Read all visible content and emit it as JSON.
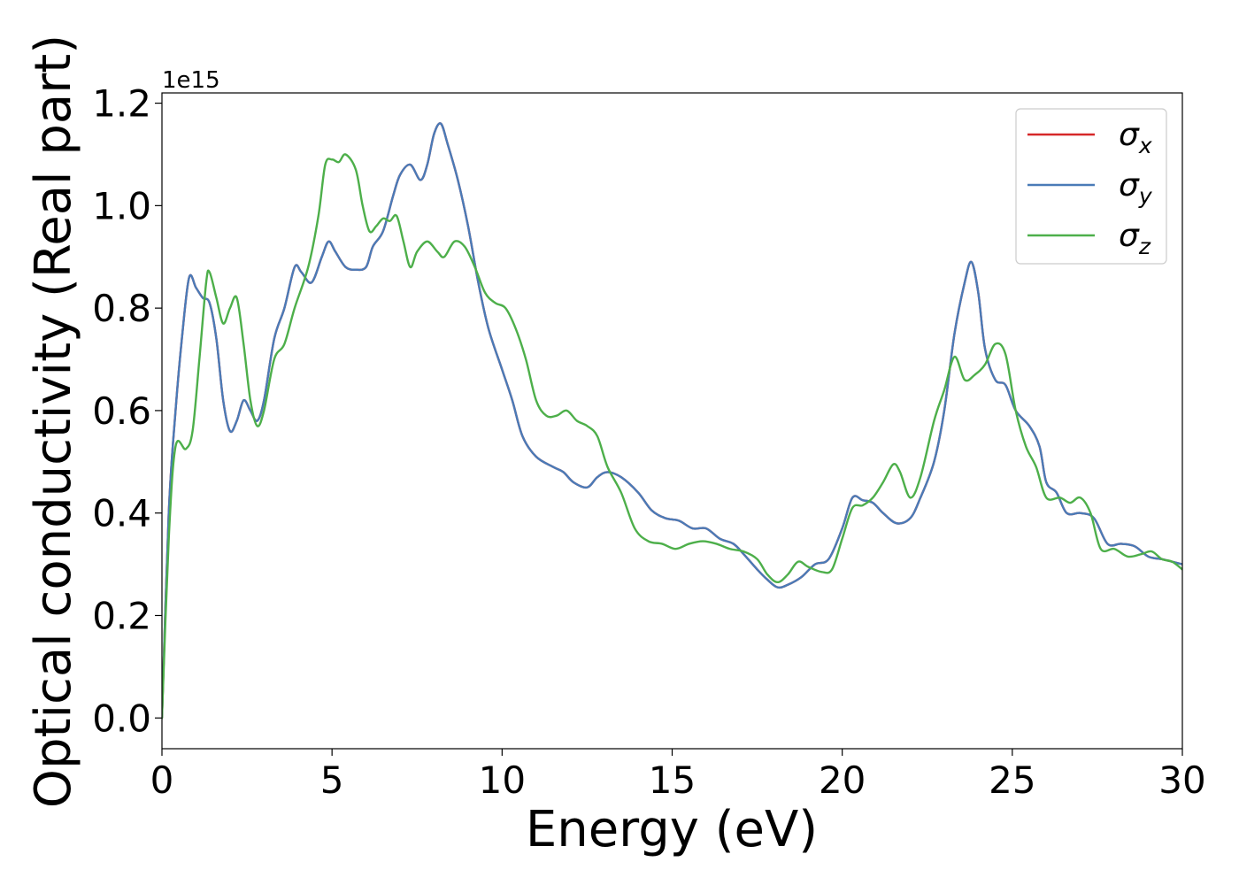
{
  "chart_data": {
    "type": "line",
    "xlabel": "Energy (eV)",
    "ylabel": "Optical conductivity (Real part)",
    "y_multiplier_label": "1e15",
    "xlim": [
      0,
      30
    ],
    "ylim": [
      -0.06,
      1.22
    ],
    "x_ticks": [
      0,
      5,
      10,
      15,
      20,
      25,
      30
    ],
    "x_tick_labels": [
      "0",
      "5",
      "10",
      "15",
      "20",
      "25",
      "30"
    ],
    "y_ticks": [
      0.0,
      0.2,
      0.4,
      0.6,
      0.8,
      1.0,
      1.2
    ],
    "y_tick_labels": [
      "0.0",
      "0.2",
      "0.4",
      "0.6",
      "0.8",
      "1.0",
      "1.2"
    ],
    "grid": false,
    "legend_position": "upper-right",
    "series": [
      {
        "name": "σx",
        "legend_base": "σ",
        "legend_sub": "x",
        "color": "#d62728",
        "points": [
          [
            0,
            0.0
          ],
          [
            0.2,
            0.4
          ],
          [
            0.4,
            0.6
          ],
          [
            0.6,
            0.75
          ],
          [
            0.8,
            0.86
          ],
          [
            1.0,
            0.84
          ],
          [
            1.2,
            0.82
          ],
          [
            1.4,
            0.81
          ],
          [
            1.6,
            0.74
          ],
          [
            1.8,
            0.62
          ],
          [
            2.0,
            0.56
          ],
          [
            2.2,
            0.58
          ],
          [
            2.4,
            0.62
          ],
          [
            2.6,
            0.6
          ],
          [
            2.8,
            0.58
          ],
          [
            3.0,
            0.62
          ],
          [
            3.3,
            0.74
          ],
          [
            3.6,
            0.8
          ],
          [
            3.9,
            0.88
          ],
          [
            4.1,
            0.87
          ],
          [
            4.4,
            0.85
          ],
          [
            4.7,
            0.9
          ],
          [
            4.9,
            0.93
          ],
          [
            5.1,
            0.91
          ],
          [
            5.4,
            0.88
          ],
          [
            5.7,
            0.875
          ],
          [
            6.0,
            0.88
          ],
          [
            6.2,
            0.92
          ],
          [
            6.5,
            0.95
          ],
          [
            6.8,
            1.02
          ],
          [
            7.0,
            1.06
          ],
          [
            7.3,
            1.08
          ],
          [
            7.6,
            1.05
          ],
          [
            7.8,
            1.08
          ],
          [
            8.0,
            1.14
          ],
          [
            8.2,
            1.16
          ],
          [
            8.4,
            1.12
          ],
          [
            8.7,
            1.05
          ],
          [
            9.0,
            0.96
          ],
          [
            9.3,
            0.85
          ],
          [
            9.6,
            0.76
          ],
          [
            10.0,
            0.68
          ],
          [
            10.3,
            0.62
          ],
          [
            10.6,
            0.55
          ],
          [
            11.0,
            0.51
          ],
          [
            11.5,
            0.49
          ],
          [
            11.8,
            0.48
          ],
          [
            12.1,
            0.46
          ],
          [
            12.5,
            0.45
          ],
          [
            12.8,
            0.47
          ],
          [
            13.1,
            0.48
          ],
          [
            13.5,
            0.47
          ],
          [
            14.0,
            0.44
          ],
          [
            14.4,
            0.405
          ],
          [
            14.8,
            0.39
          ],
          [
            15.2,
            0.385
          ],
          [
            15.6,
            0.37
          ],
          [
            16.0,
            0.37
          ],
          [
            16.4,
            0.35
          ],
          [
            16.8,
            0.34
          ],
          [
            17.1,
            0.32
          ],
          [
            17.5,
            0.29
          ],
          [
            17.8,
            0.27
          ],
          [
            18.1,
            0.255
          ],
          [
            18.4,
            0.26
          ],
          [
            18.8,
            0.275
          ],
          [
            19.2,
            0.3
          ],
          [
            19.6,
            0.31
          ],
          [
            20.0,
            0.37
          ],
          [
            20.3,
            0.43
          ],
          [
            20.6,
            0.425
          ],
          [
            20.9,
            0.42
          ],
          [
            21.2,
            0.4
          ],
          [
            21.6,
            0.38
          ],
          [
            22.0,
            0.39
          ],
          [
            22.3,
            0.43
          ],
          [
            22.7,
            0.5
          ],
          [
            23.0,
            0.6
          ],
          [
            23.3,
            0.75
          ],
          [
            23.6,
            0.85
          ],
          [
            23.8,
            0.89
          ],
          [
            24.0,
            0.83
          ],
          [
            24.2,
            0.72
          ],
          [
            24.5,
            0.66
          ],
          [
            24.8,
            0.65
          ],
          [
            25.1,
            0.6
          ],
          [
            25.5,
            0.57
          ],
          [
            25.8,
            0.53
          ],
          [
            26.0,
            0.46
          ],
          [
            26.3,
            0.44
          ],
          [
            26.6,
            0.4
          ],
          [
            27.0,
            0.4
          ],
          [
            27.4,
            0.39
          ],
          [
            27.8,
            0.34
          ],
          [
            28.2,
            0.34
          ],
          [
            28.6,
            0.335
          ],
          [
            29.0,
            0.315
          ],
          [
            29.4,
            0.31
          ],
          [
            29.7,
            0.305
          ],
          [
            30.0,
            0.3
          ]
        ]
      },
      {
        "name": "σy",
        "legend_base": "σ",
        "legend_sub": "y",
        "color": "#4a7bb7",
        "points": [
          [
            0,
            0.0
          ],
          [
            0.2,
            0.4
          ],
          [
            0.4,
            0.6
          ],
          [
            0.6,
            0.75
          ],
          [
            0.8,
            0.86
          ],
          [
            1.0,
            0.84
          ],
          [
            1.2,
            0.82
          ],
          [
            1.4,
            0.81
          ],
          [
            1.6,
            0.74
          ],
          [
            1.8,
            0.62
          ],
          [
            2.0,
            0.56
          ],
          [
            2.2,
            0.58
          ],
          [
            2.4,
            0.62
          ],
          [
            2.6,
            0.6
          ],
          [
            2.8,
            0.58
          ],
          [
            3.0,
            0.62
          ],
          [
            3.3,
            0.74
          ],
          [
            3.6,
            0.8
          ],
          [
            3.9,
            0.88
          ],
          [
            4.1,
            0.87
          ],
          [
            4.4,
            0.85
          ],
          [
            4.7,
            0.9
          ],
          [
            4.9,
            0.93
          ],
          [
            5.1,
            0.91
          ],
          [
            5.4,
            0.88
          ],
          [
            5.7,
            0.875
          ],
          [
            6.0,
            0.88
          ],
          [
            6.2,
            0.92
          ],
          [
            6.5,
            0.95
          ],
          [
            6.8,
            1.02
          ],
          [
            7.0,
            1.06
          ],
          [
            7.3,
            1.08
          ],
          [
            7.6,
            1.05
          ],
          [
            7.8,
            1.08
          ],
          [
            8.0,
            1.14
          ],
          [
            8.2,
            1.16
          ],
          [
            8.4,
            1.12
          ],
          [
            8.7,
            1.05
          ],
          [
            9.0,
            0.96
          ],
          [
            9.3,
            0.85
          ],
          [
            9.6,
            0.76
          ],
          [
            10.0,
            0.68
          ],
          [
            10.3,
            0.62
          ],
          [
            10.6,
            0.55
          ],
          [
            11.0,
            0.51
          ],
          [
            11.5,
            0.49
          ],
          [
            11.8,
            0.48
          ],
          [
            12.1,
            0.46
          ],
          [
            12.5,
            0.45
          ],
          [
            12.8,
            0.47
          ],
          [
            13.1,
            0.48
          ],
          [
            13.5,
            0.47
          ],
          [
            14.0,
            0.44
          ],
          [
            14.4,
            0.405
          ],
          [
            14.8,
            0.39
          ],
          [
            15.2,
            0.385
          ],
          [
            15.6,
            0.37
          ],
          [
            16.0,
            0.37
          ],
          [
            16.4,
            0.35
          ],
          [
            16.8,
            0.34
          ],
          [
            17.1,
            0.32
          ],
          [
            17.5,
            0.29
          ],
          [
            17.8,
            0.27
          ],
          [
            18.1,
            0.255
          ],
          [
            18.4,
            0.26
          ],
          [
            18.8,
            0.275
          ],
          [
            19.2,
            0.3
          ],
          [
            19.6,
            0.31
          ],
          [
            20.0,
            0.37
          ],
          [
            20.3,
            0.43
          ],
          [
            20.6,
            0.425
          ],
          [
            20.9,
            0.42
          ],
          [
            21.2,
            0.4
          ],
          [
            21.6,
            0.38
          ],
          [
            22.0,
            0.39
          ],
          [
            22.3,
            0.43
          ],
          [
            22.7,
            0.5
          ],
          [
            23.0,
            0.6
          ],
          [
            23.3,
            0.75
          ],
          [
            23.6,
            0.85
          ],
          [
            23.8,
            0.89
          ],
          [
            24.0,
            0.83
          ],
          [
            24.2,
            0.72
          ],
          [
            24.5,
            0.66
          ],
          [
            24.8,
            0.65
          ],
          [
            25.1,
            0.6
          ],
          [
            25.5,
            0.57
          ],
          [
            25.8,
            0.53
          ],
          [
            26.0,
            0.46
          ],
          [
            26.3,
            0.44
          ],
          [
            26.6,
            0.4
          ],
          [
            27.0,
            0.4
          ],
          [
            27.4,
            0.39
          ],
          [
            27.8,
            0.34
          ],
          [
            28.2,
            0.34
          ],
          [
            28.6,
            0.335
          ],
          [
            29.0,
            0.315
          ],
          [
            29.4,
            0.31
          ],
          [
            29.7,
            0.305
          ],
          [
            30.0,
            0.3
          ]
        ]
      },
      {
        "name": "σz",
        "legend_base": "σ",
        "legend_sub": "z",
        "color": "#4daf4a",
        "points": [
          [
            0,
            0.0
          ],
          [
            0.2,
            0.35
          ],
          [
            0.4,
            0.53
          ],
          [
            0.7,
            0.525
          ],
          [
            0.9,
            0.56
          ],
          [
            1.1,
            0.7
          ],
          [
            1.3,
            0.85
          ],
          [
            1.4,
            0.87
          ],
          [
            1.6,
            0.82
          ],
          [
            1.8,
            0.77
          ],
          [
            2.0,
            0.8
          ],
          [
            2.2,
            0.82
          ],
          [
            2.4,
            0.73
          ],
          [
            2.6,
            0.62
          ],
          [
            2.8,
            0.57
          ],
          [
            3.0,
            0.6
          ],
          [
            3.3,
            0.7
          ],
          [
            3.6,
            0.73
          ],
          [
            3.9,
            0.8
          ],
          [
            4.3,
            0.88
          ],
          [
            4.6,
            0.98
          ],
          [
            4.8,
            1.08
          ],
          [
            5.0,
            1.09
          ],
          [
            5.2,
            1.085
          ],
          [
            5.4,
            1.1
          ],
          [
            5.7,
            1.07
          ],
          [
            5.9,
            1.0
          ],
          [
            6.1,
            0.95
          ],
          [
            6.3,
            0.96
          ],
          [
            6.5,
            0.975
          ],
          [
            6.7,
            0.97
          ],
          [
            6.9,
            0.98
          ],
          [
            7.1,
            0.93
          ],
          [
            7.3,
            0.88
          ],
          [
            7.5,
            0.91
          ],
          [
            7.8,
            0.93
          ],
          [
            8.1,
            0.91
          ],
          [
            8.3,
            0.9
          ],
          [
            8.6,
            0.93
          ],
          [
            8.9,
            0.92
          ],
          [
            9.2,
            0.88
          ],
          [
            9.5,
            0.83
          ],
          [
            9.8,
            0.81
          ],
          [
            10.1,
            0.8
          ],
          [
            10.4,
            0.76
          ],
          [
            10.7,
            0.7
          ],
          [
            11.0,
            0.62
          ],
          [
            11.3,
            0.59
          ],
          [
            11.6,
            0.59
          ],
          [
            11.9,
            0.6
          ],
          [
            12.2,
            0.58
          ],
          [
            12.5,
            0.57
          ],
          [
            12.8,
            0.55
          ],
          [
            13.1,
            0.49
          ],
          [
            13.5,
            0.44
          ],
          [
            13.9,
            0.37
          ],
          [
            14.3,
            0.345
          ],
          [
            14.7,
            0.34
          ],
          [
            15.1,
            0.33
          ],
          [
            15.5,
            0.34
          ],
          [
            15.9,
            0.345
          ],
          [
            16.3,
            0.34
          ],
          [
            16.7,
            0.33
          ],
          [
            17.1,
            0.325
          ],
          [
            17.5,
            0.31
          ],
          [
            17.8,
            0.28
          ],
          [
            18.1,
            0.265
          ],
          [
            18.4,
            0.28
          ],
          [
            18.7,
            0.305
          ],
          [
            19.0,
            0.295
          ],
          [
            19.4,
            0.285
          ],
          [
            19.7,
            0.29
          ],
          [
            20.0,
            0.35
          ],
          [
            20.3,
            0.41
          ],
          [
            20.6,
            0.415
          ],
          [
            20.9,
            0.43
          ],
          [
            21.2,
            0.46
          ],
          [
            21.5,
            0.495
          ],
          [
            21.7,
            0.48
          ],
          [
            22.0,
            0.43
          ],
          [
            22.3,
            0.47
          ],
          [
            22.7,
            0.58
          ],
          [
            23.0,
            0.64
          ],
          [
            23.3,
            0.705
          ],
          [
            23.6,
            0.66
          ],
          [
            23.9,
            0.67
          ],
          [
            24.2,
            0.69
          ],
          [
            24.5,
            0.73
          ],
          [
            24.8,
            0.71
          ],
          [
            25.1,
            0.6
          ],
          [
            25.4,
            0.53
          ],
          [
            25.7,
            0.49
          ],
          [
            26.0,
            0.43
          ],
          [
            26.4,
            0.43
          ],
          [
            26.7,
            0.42
          ],
          [
            27.0,
            0.43
          ],
          [
            27.3,
            0.4
          ],
          [
            27.6,
            0.33
          ],
          [
            28.0,
            0.33
          ],
          [
            28.4,
            0.315
          ],
          [
            28.8,
            0.32
          ],
          [
            29.1,
            0.325
          ],
          [
            29.4,
            0.31
          ],
          [
            29.7,
            0.305
          ],
          [
            30.0,
            0.29
          ]
        ]
      }
    ]
  }
}
